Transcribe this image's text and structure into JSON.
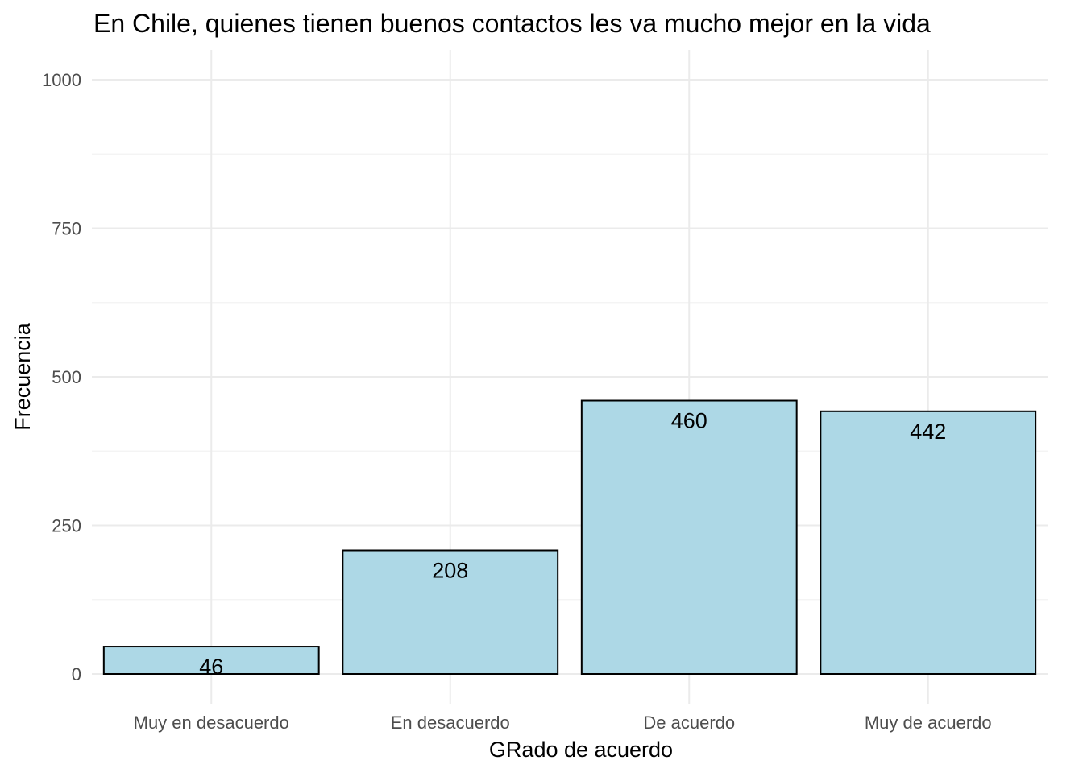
{
  "chart_data": {
    "type": "bar",
    "title": "En Chile, quienes tienen buenos contactos les va mucho mejor en la vida",
    "xlabel": "GRado de acuerdo",
    "ylabel": "Frecuencia",
    "categories": [
      "Muy en desacuerdo",
      "En desacuerdo",
      "De acuerdo",
      "Muy de acuerdo"
    ],
    "values": [
      46,
      208,
      460,
      442
    ],
    "ylim": [
      0,
      1000
    ],
    "yticks": [
      0,
      250,
      500,
      750,
      1000
    ],
    "y_tick_labels": [
      "0",
      "250",
      "500",
      "750",
      "1000"
    ],
    "grid": true,
    "legend": "none",
    "bar_color": "#ADD8E6",
    "bar_outline_color": "#000000"
  }
}
